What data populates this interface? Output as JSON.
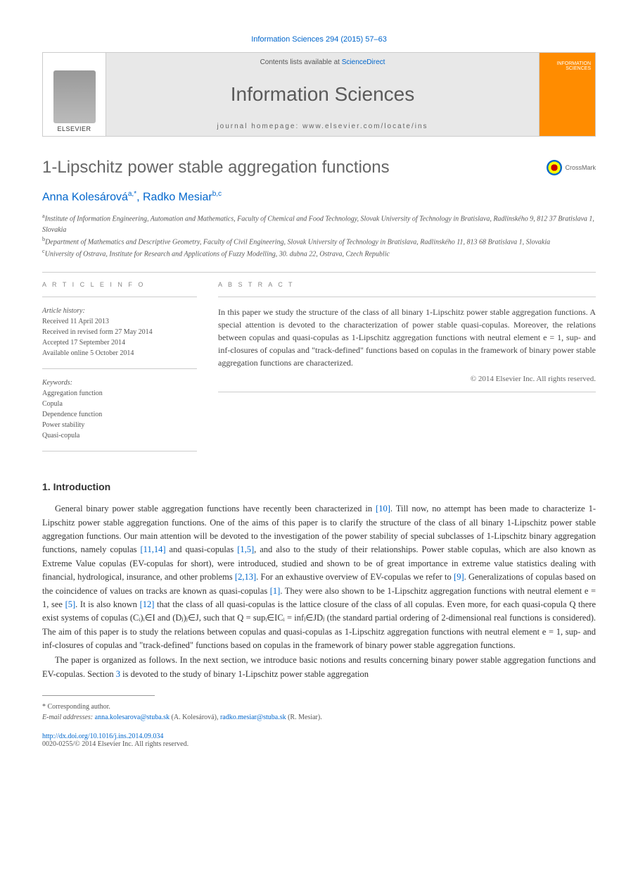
{
  "citation": "Information Sciences 294 (2015) 57–63",
  "banner": {
    "contents_pre": "Contents lists available at ",
    "contents_link": "ScienceDirect",
    "journal": "Information Sciences",
    "homepage_label": "journal homepage: ",
    "homepage_url": "www.elsevier.com/locate/ins",
    "publisher": "ELSEVIER"
  },
  "crossmark": "CrossMark",
  "title": "1-Lipschitz power stable aggregation functions",
  "authors": [
    {
      "name": "Anna Kolesárová",
      "marks": "a,*"
    },
    {
      "name": "Radko Mesiar",
      "marks": "b,c"
    }
  ],
  "affiliations": [
    {
      "mark": "a",
      "text": "Institute of Information Engineering, Automation and Mathematics, Faculty of Chemical and Food Technology, Slovak University of Technology in Bratislava, Radlinského 9, 812 37 Bratislava 1, Slovakia"
    },
    {
      "mark": "b",
      "text": "Department of Mathematics and Descriptive Geometry, Faculty of Civil Engineering, Slovak University of Technology in Bratislava, Radlinského 11, 813 68 Bratislava 1, Slovakia"
    },
    {
      "mark": "c",
      "text": "University of Ostrava, Institute for Research and Applications of Fuzzy Modelling, 30. dubna 22, Ostrava, Czech Republic"
    }
  ],
  "info": {
    "label": "A R T I C L E   I N F O",
    "history_label": "Article history:",
    "history": [
      "Received 11 April 2013",
      "Received in revised form 27 May 2014",
      "Accepted 17 September 2014",
      "Available online 5 October 2014"
    ],
    "keywords_label": "Keywords:",
    "keywords": [
      "Aggregation function",
      "Copula",
      "Dependence function",
      "Power stability",
      "Quasi-copula"
    ]
  },
  "abstract": {
    "label": "A B S T R A C T",
    "text": "In this paper we study the structure of the class of all binary 1-Lipschitz power stable aggregation functions. A special attention is devoted to the characterization of power stable quasi-copulas. Moreover, the relations between copulas and quasi-copulas as 1-Lipschitz aggregation functions with neutral element e = 1, sup- and inf-closures of copulas and \"track-defined\" functions based on copulas in the framework of binary power stable aggregation functions are characterized.",
    "copyright": "© 2014 Elsevier Inc. All rights reserved."
  },
  "section1": {
    "heading": "1. Introduction",
    "p1_a": "General binary power stable aggregation functions have recently been characterized in ",
    "ref1": "[10]",
    "p1_b": ". Till now, no attempt has been made to characterize 1-Lipschitz power stable aggregation functions. One of the aims of this paper is to clarify the structure of the class of all binary 1-Lipschitz power stable aggregation functions. Our main attention will be devoted to the investigation of the power stability of special subclasses of 1-Lipschitz binary aggregation functions, namely copulas ",
    "ref2": "[11,14]",
    "p1_c": " and quasi-copulas ",
    "ref3": "[1,5]",
    "p1_d": ", and also to the study of their relationships. Power stable copulas, which are also known as Extreme Value copulas (EV-copulas for short), were introduced, studied and shown to be of great importance in extreme value statistics dealing with financial, hydrological, insurance, and other problems ",
    "ref4": "[2,13]",
    "p1_e": ". For an exhaustive overview of EV-copulas we refer to ",
    "ref5": "[9]",
    "p1_f": ". Generalizations of copulas based on the coincidence of values on tracks are known as quasi-copulas ",
    "ref6": "[1]",
    "p1_g": ". They were also shown to be 1-Lipschitz aggregation functions with neutral element e = 1, see ",
    "ref7": "[5]",
    "p1_h": ". It is also known ",
    "ref8": "[12]",
    "p1_i": " that the class of all quasi-copulas is the lattice closure of the class of all copulas. Even more, for each quasi-copula Q there exist systems of copulas (Cᵢ)ᵢ∈I and (Dⱼ)ⱼ∈J, such that Q = supᵢ∈ICᵢ = infⱼ∈JDⱼ (the standard partial ordering of 2-dimensional real functions is considered). The aim of this paper is to study the relations between copulas and quasi-copulas as 1-Lipschitz aggregation functions with neutral element e = 1, sup- and inf-closures of copulas and \"track-defined\" functions based on copulas in the framework of binary power stable aggregation functions.",
    "p2_a": "The paper is organized as follows. In the next section, we introduce basic notions and results concerning binary power stable aggregation functions and EV-copulas. Section ",
    "ref9": "3",
    "p2_b": " is devoted to the study of binary 1-Lipschitz power stable aggregation"
  },
  "footnote": {
    "corr": "* Corresponding author.",
    "email_label": "E-mail addresses: ",
    "email1": "anna.kolesarova@stuba.sk",
    "email1_name": " (A. Kolesárová), ",
    "email2": "radko.mesiar@stuba.sk",
    "email2_name": " (R. Mesiar)."
  },
  "doi": {
    "url": "http://dx.doi.org/10.1016/j.ins.2014.09.034",
    "issn": "0020-0255/© 2014 Elsevier Inc. All rights reserved."
  },
  "colors": {
    "link": "#0066cc",
    "accent": "#ff8c00",
    "title_gray": "#666666"
  }
}
